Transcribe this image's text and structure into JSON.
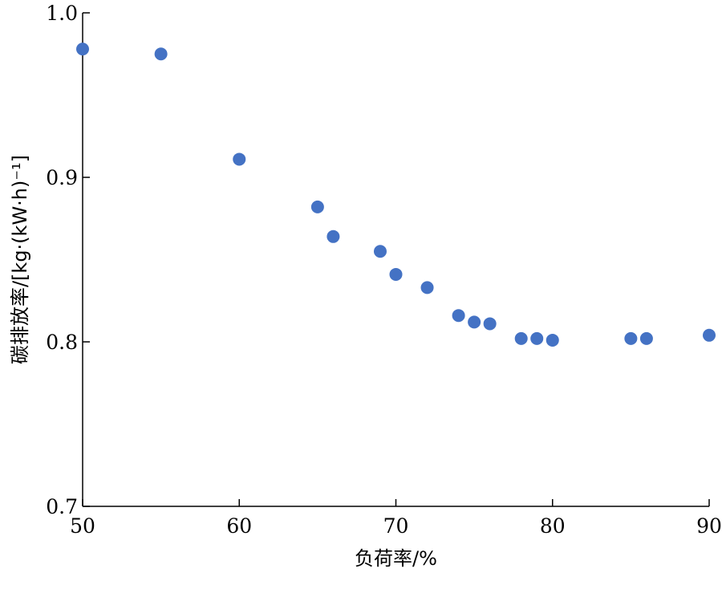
{
  "chart_data": {
    "type": "scatter",
    "title": "",
    "xlabel": "负荷率/%",
    "ylabel": "碳排放率/[kg·(kW·h)⁻¹]",
    "xlim": [
      50,
      90
    ],
    "ylim": [
      0.7,
      1.0
    ],
    "x_ticks": [
      50,
      60,
      70,
      80,
      90
    ],
    "x_tick_labels": [
      "50",
      "60",
      "70",
      "80",
      "90"
    ],
    "y_ticks": [
      0.7,
      0.8,
      0.9,
      1.0
    ],
    "y_tick_labels": [
      "0.7",
      "0.8",
      "0.9",
      "1.0"
    ],
    "grid": false,
    "color": "#4472c4",
    "series": [
      {
        "x": [
          50,
          55,
          60,
          65,
          66,
          69,
          70,
          72,
          74,
          75,
          76,
          78,
          79,
          80,
          85,
          86,
          90
        ],
        "y": [
          0.978,
          0.975,
          0.911,
          0.882,
          0.864,
          0.855,
          0.841,
          0.833,
          0.816,
          0.812,
          0.811,
          0.802,
          0.802,
          0.801,
          0.802,
          0.802,
          0.804
        ]
      }
    ]
  }
}
